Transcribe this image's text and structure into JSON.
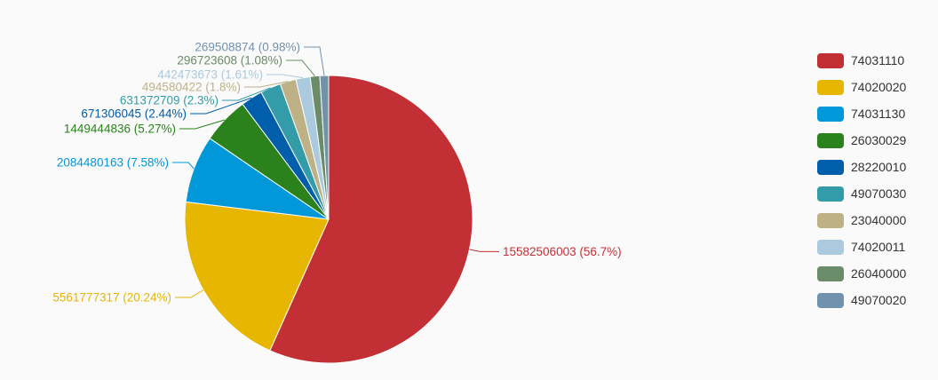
{
  "chart_data": {
    "type": "pie",
    "title": "",
    "legend_position": "right",
    "start_angle_deg": 90,
    "direction": "clockwise",
    "slices": [
      {
        "name": "74031110",
        "value": 15582506003,
        "label": "15582506003 (56.7%)",
        "color": "#c23035"
      },
      {
        "name": "74020020",
        "value": 5561777317,
        "label": "5561777317 (20.24%)",
        "color": "#e6b600"
      },
      {
        "name": "74031130",
        "value": 2084480163,
        "label": "2084480163 (7.58%)",
        "color": "#0098d9"
      },
      {
        "name": "26030029",
        "value": 1449444836,
        "label": "1449444836 (5.27%)",
        "color": "#2b821d"
      },
      {
        "name": "28220010",
        "value": 671306045,
        "label": "671306045 (2.44%)",
        "color": "#005eaa"
      },
      {
        "name": "49070030",
        "value": 631372709,
        "label": "631372709 (2.3%)",
        "color": "#339ca8"
      },
      {
        "name": "23040000",
        "value": 494580422,
        "label": "494580422 (1.8%)",
        "color": "#cda819"
      },
      {
        "name": "74020011",
        "value": 442473673,
        "label": "442473673 (1.61%)",
        "color": "#32a487"
      },
      {
        "name": "26040000",
        "value": 296723608,
        "label": "296723608 (1.08%)",
        "color": "#6a8c69"
      },
      {
        "name": "49070020",
        "value": 269508874,
        "label": "269508874 (0.98%)",
        "color": "#7191ac"
      }
    ]
  }
}
